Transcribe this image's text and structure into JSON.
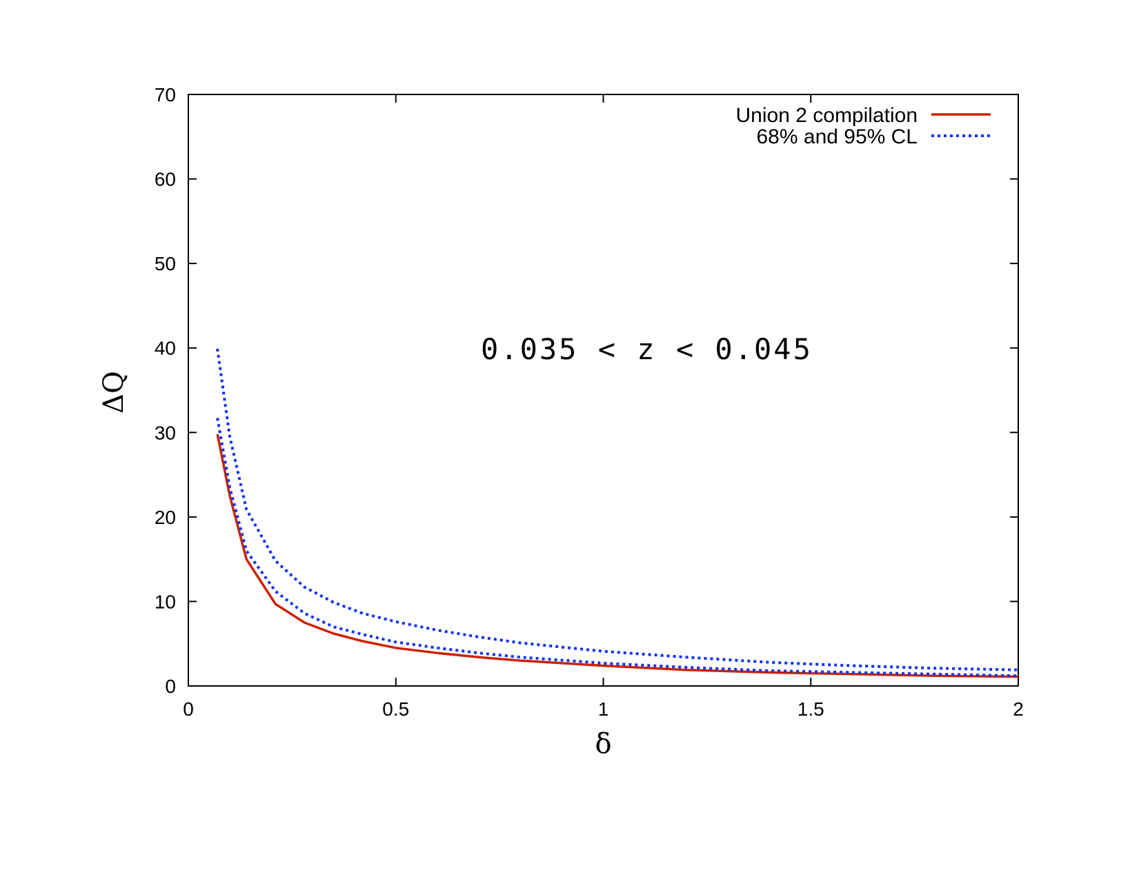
{
  "chart_data": {
    "type": "line",
    "xlabel": "δ",
    "ylabel": "ΔQ",
    "xlim": [
      0,
      2
    ],
    "ylim": [
      0,
      70
    ],
    "x_ticks": [
      0,
      0.5,
      1,
      1.5,
      2
    ],
    "x_tick_labels": [
      "0",
      "0.5",
      "1",
      "1.5",
      "2"
    ],
    "y_ticks": [
      0,
      10,
      20,
      30,
      40,
      50,
      60,
      70
    ],
    "y_tick_labels": [
      "0",
      "10",
      "20",
      "30",
      "40",
      "50",
      "60",
      "70"
    ],
    "grid": false,
    "legend_position": "top-right",
    "annotation": "0.035 < z < 0.045",
    "series": [
      {
        "name": "Union 2 compilation",
        "color": "#cc2200",
        "style": "solid",
        "x": [
          0.07,
          0.1,
          0.14,
          0.21,
          0.28,
          0.35,
          0.42,
          0.5,
          0.6,
          0.7,
          0.8,
          1.0,
          1.2,
          1.4,
          1.6,
          1.8,
          2.0
        ],
        "y": [
          29.8,
          22.5,
          15.0,
          9.7,
          7.5,
          6.2,
          5.3,
          4.5,
          3.9,
          3.4,
          3.0,
          2.4,
          1.9,
          1.6,
          1.4,
          1.2,
          1.1
        ]
      },
      {
        "name": "68% and 95% CL",
        "color": "#1133ee",
        "style": "dotted",
        "x": [
          0.07,
          0.1,
          0.14,
          0.21,
          0.28,
          0.35,
          0.42,
          0.5,
          0.6,
          0.7,
          0.8,
          1.0,
          1.2,
          1.4,
          1.6,
          1.8,
          2.0
        ],
        "y": [
          31.7,
          23.5,
          16.0,
          11.2,
          8.6,
          7.0,
          6.1,
          5.2,
          4.5,
          3.9,
          3.4,
          2.7,
          2.2,
          1.8,
          1.6,
          1.4,
          1.2
        ]
      },
      {
        "name": "",
        "color": "#1133ee",
        "style": "dotted",
        "x": [
          0.07,
          0.1,
          0.14,
          0.21,
          0.28,
          0.35,
          0.42,
          0.5,
          0.6,
          0.7,
          0.8,
          1.0,
          1.2,
          1.4,
          1.6,
          1.8,
          2.0
        ],
        "y": [
          39.9,
          29.5,
          20.9,
          14.8,
          11.7,
          9.9,
          8.6,
          7.6,
          6.6,
          5.8,
          5.1,
          4.1,
          3.4,
          2.8,
          2.4,
          2.1,
          1.9
        ]
      }
    ]
  }
}
